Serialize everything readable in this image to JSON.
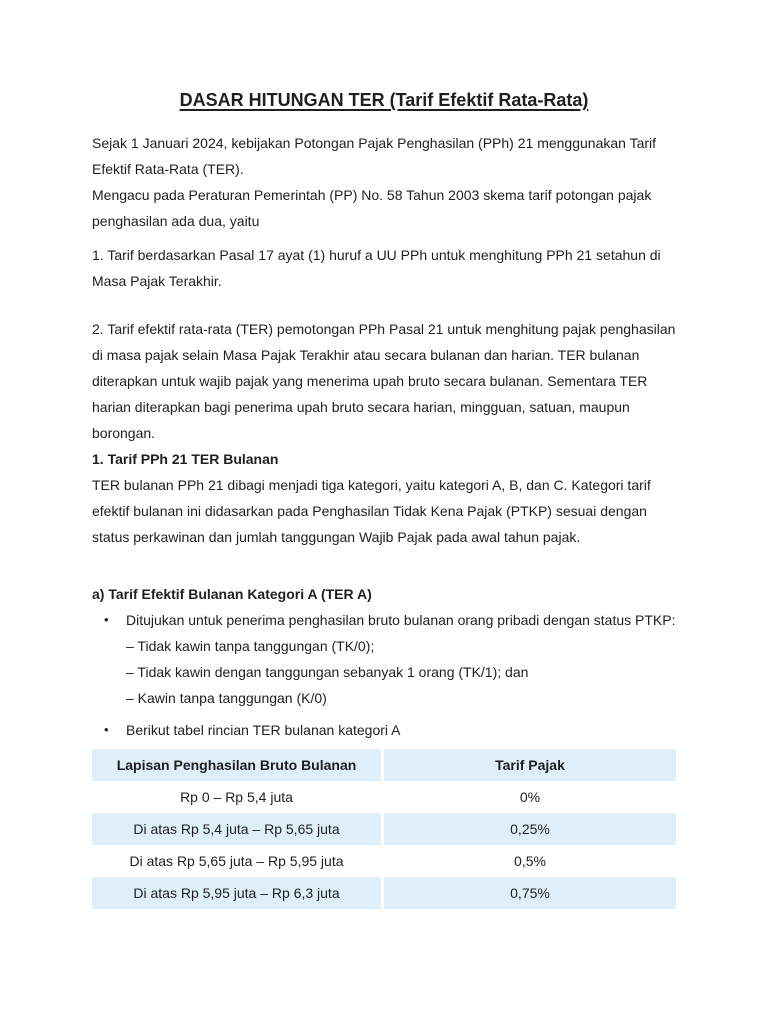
{
  "document": {
    "title": "DASAR HITUNGAN TER (Tarif Efektif Rata-Rata)",
    "paragraphs": {
      "intro": [
        "Sejak 1 Januari 2024, kebijakan Potongan Pajak Penghasilan (PPh) 21 menggunakan Tarif",
        "Efektif Rata-Rata (TER)."
      ],
      "regulation": [
        "Mengacu pada Peraturan Pemerintah (PP) No. 58 Tahun 2003 skema tarif potongan pajak",
        "penghasilan ada dua, yaitu"
      ],
      "point_1": [
        "1. Tarif berdasarkan Pasal 17 ayat (1) huruf a UU PPh untuk menghitung PPh 21 setahun di",
        "Masa Pajak Terakhir."
      ],
      "point_2": [
        "2. Tarif efektif rata-rata (TER) pemotongan PPh Pasal 21 untuk menghitung pajak penghasilan",
        "di masa pajak selain Masa Pajak Terakhir atau secara bulanan dan harian. TER bulanan",
        "diterapkan untuk wajib pajak yang menerima upah bruto secara bulanan. Sementara TER",
        "harian diterapkan bagi penerima upah bruto secara harian, mingguan, satuan, maupun",
        "borongan."
      ]
    },
    "section_1": {
      "heading": "1. Tarif PPh 21 TER Bulanan",
      "body": [
        "TER bulanan PPh 21 dibagi menjadi tiga kategori, yaitu kategori A, B, dan C. Kategori tarif",
        "efektif bulanan ini didasarkan pada Penghasilan Tidak Kena Pajak (PTKP) sesuai dengan",
        "status perkawinan dan jumlah tanggungan Wajib Pajak pada awal tahun pajak."
      ]
    },
    "subsection_a": {
      "heading": "a) Tarif Efektif Bulanan Kategori A (TER A)",
      "bullet_1": {
        "text": "Ditujukan untuk penerima penghasilan bruto bulanan orang pribadi dengan status PTKP:",
        "criteria": [
          "– Tidak kawin tanpa tanggungan (TK/0);",
          "– Tidak kawin dengan tanggungan sebanyak 1 orang (TK/1); dan",
          "– Kawin tanpa tanggungan (K/0)"
        ]
      },
      "bullet_2": "Berikut tabel rincian TER bulanan kategori A",
      "table": {
        "headers": [
          "Lapisan Penghasilan Bruto Bulanan",
          "Tarif Pajak"
        ],
        "rows": [
          [
            "Rp 0 – Rp 5,4 juta",
            "0%"
          ],
          [
            "Di atas Rp 5,4 juta – Rp 5,65 juta",
            "0,25%"
          ],
          [
            "Di atas Rp 5,65 juta – Rp 5,95 juta",
            "0,5%"
          ],
          [
            "Di atas Rp 5,95 juta – Rp 6,3 juta",
            "0,75%"
          ]
        ]
      }
    },
    "icons": {
      "bullet": "•"
    },
    "colors": {
      "page_background": "#ffffff",
      "text": "#1f1f1f",
      "table_stripe": "#deeffa"
    }
  }
}
